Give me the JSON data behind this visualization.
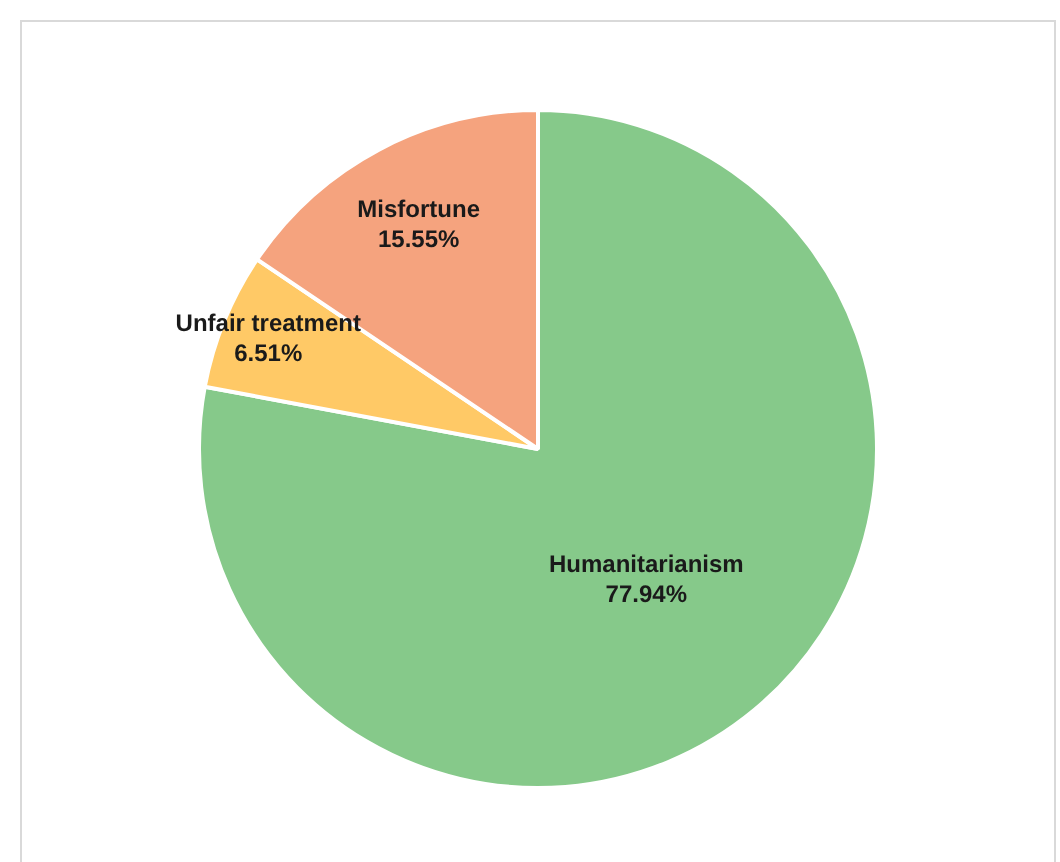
{
  "chart_data": {
    "type": "pie",
    "categories": [
      "Humanitarianism",
      "Unfair treatment",
      "Misfortune"
    ],
    "values": [
      77.94,
      6.51,
      15.55
    ],
    "colors": [
      "#86c98a",
      "#ffc966",
      "#f5a37e"
    ],
    "value_labels": [
      "77.94%",
      "6.51%",
      "15.55%"
    ],
    "legend": false
  }
}
